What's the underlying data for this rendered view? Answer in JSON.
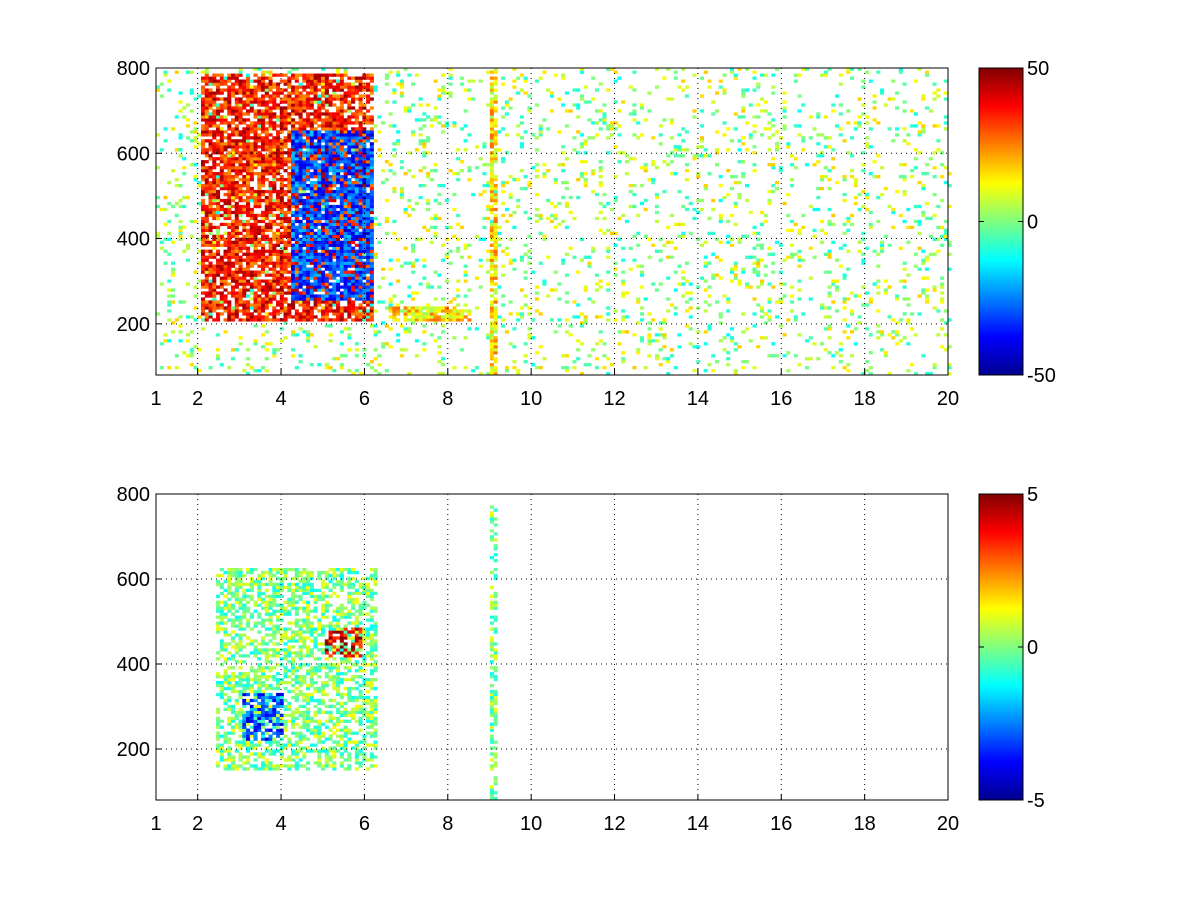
{
  "chart_data": [
    {
      "type": "heatmap",
      "title": "",
      "xlabel": "",
      "ylabel": "",
      "xlim": [
        1,
        20
      ],
      "ylim": [
        80,
        800
      ],
      "xticks": [
        1,
        2,
        4,
        6,
        8,
        10,
        12,
        14,
        16,
        18,
        20
      ],
      "xtick_labels": [
        "1",
        "2",
        "4",
        "6",
        "8",
        "10",
        "12",
        "14",
        "16",
        "18",
        "20"
      ],
      "yticks": [
        200,
        400,
        600,
        800
      ],
      "ytick_labels": [
        "200",
        "400",
        "600",
        "800"
      ],
      "grid": "dotted",
      "colormap": "jet",
      "clim": [
        -50,
        50
      ],
      "colorbar_ticks": [
        50,
        0,
        -50
      ],
      "colorbar_tick_labels": [
        "50",
        "0",
        "-50"
      ],
      "features": [
        {
          "x_range": [
            2.0,
            6.2
          ],
          "y_range": [
            200,
            780
          ],
          "description_value": 35
        },
        {
          "x_range": [
            4.2,
            6.2
          ],
          "y_range": [
            250,
            650
          ],
          "description_value": -30
        },
        {
          "x_range": [
            6.5,
            8.5
          ],
          "y_range": [
            200,
            240
          ],
          "description_value": 15
        },
        {
          "x_range": [
            9.0,
            9.1
          ],
          "y_range": [
            80,
            800
          ],
          "description_value": 15
        }
      ]
    },
    {
      "type": "heatmap",
      "title": "",
      "xlabel": "",
      "ylabel": "",
      "xlim": [
        1,
        20
      ],
      "ylim": [
        80,
        800
      ],
      "xticks": [
        1,
        2,
        4,
        6,
        8,
        10,
        12,
        14,
        16,
        18,
        20
      ],
      "xtick_labels": [
        "1",
        "2",
        "4",
        "6",
        "8",
        "10",
        "12",
        "14",
        "16",
        "18",
        "20"
      ],
      "yticks": [
        200,
        400,
        600,
        800
      ],
      "ytick_labels": [
        "200",
        "400",
        "600",
        "800"
      ],
      "grid": "dotted",
      "colormap": "jet",
      "clim": [
        -5,
        5
      ],
      "colorbar_ticks": [
        5,
        0,
        -5
      ],
      "colorbar_tick_labels": [
        "5",
        "0",
        "-5"
      ],
      "features": [
        {
          "x_range": [
            2.4,
            6.3
          ],
          "y_range": [
            150,
            620
          ],
          "description_value": 0
        },
        {
          "x_range": [
            3.0,
            4.0
          ],
          "y_range": [
            220,
            330
          ],
          "description_value": -3
        },
        {
          "x_range": [
            5.0,
            5.9
          ],
          "y_range": [
            410,
            480
          ],
          "description_value": 4
        },
        {
          "x_range": [
            9.0,
            9.1
          ],
          "y_range": [
            80,
            770
          ],
          "description_value": 0
        }
      ]
    }
  ]
}
